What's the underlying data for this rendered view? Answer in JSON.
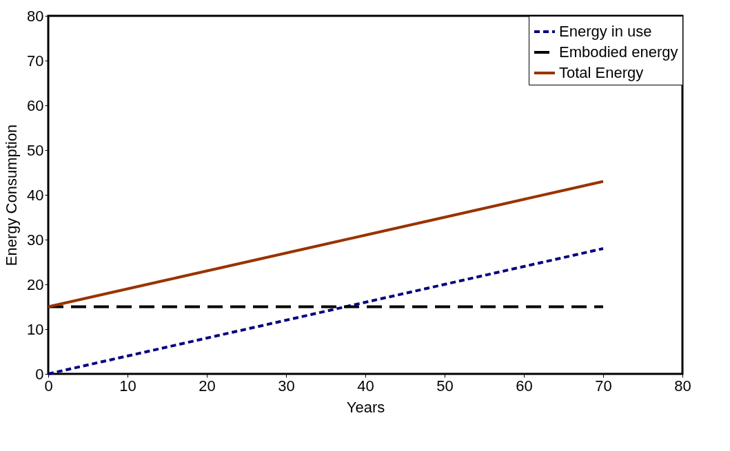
{
  "chart_data": {
    "type": "line",
    "xlabel": "Years",
    "ylabel": "Energy Consumption",
    "xlim": [
      0,
      80
    ],
    "xticks": [
      0,
      10,
      20,
      30,
      40,
      50,
      60,
      70,
      80
    ],
    "ylim": [
      0,
      80
    ],
    "yticks": [
      0,
      10,
      20,
      30,
      40,
      50,
      60,
      70,
      80
    ],
    "x": [
      0,
      5,
      10,
      15,
      20,
      25,
      30,
      35,
      40,
      45,
      50,
      55,
      60,
      65,
      70
    ],
    "series": [
      {
        "name": "Energy in use",
        "color": "#000080",
        "line_style": "dotted",
        "values": [
          0,
          2,
          4,
          6,
          8,
          10,
          12,
          14,
          16,
          18,
          20,
          22,
          24,
          26,
          28
        ]
      },
      {
        "name": "Embodied energy",
        "color": "#000000",
        "line_style": "dashed",
        "values": [
          15,
          15,
          15,
          15,
          15,
          15,
          15,
          15,
          15,
          15,
          15,
          15,
          15,
          15,
          15
        ]
      },
      {
        "name": "Total Energy",
        "color": "#993300",
        "line_style": "solid",
        "values": [
          15,
          17,
          19,
          21,
          23,
          25,
          27,
          29,
          31,
          33,
          35,
          37,
          39,
          41,
          43
        ]
      }
    ],
    "grid": false,
    "legend": "top right",
    "marker": "none"
  }
}
